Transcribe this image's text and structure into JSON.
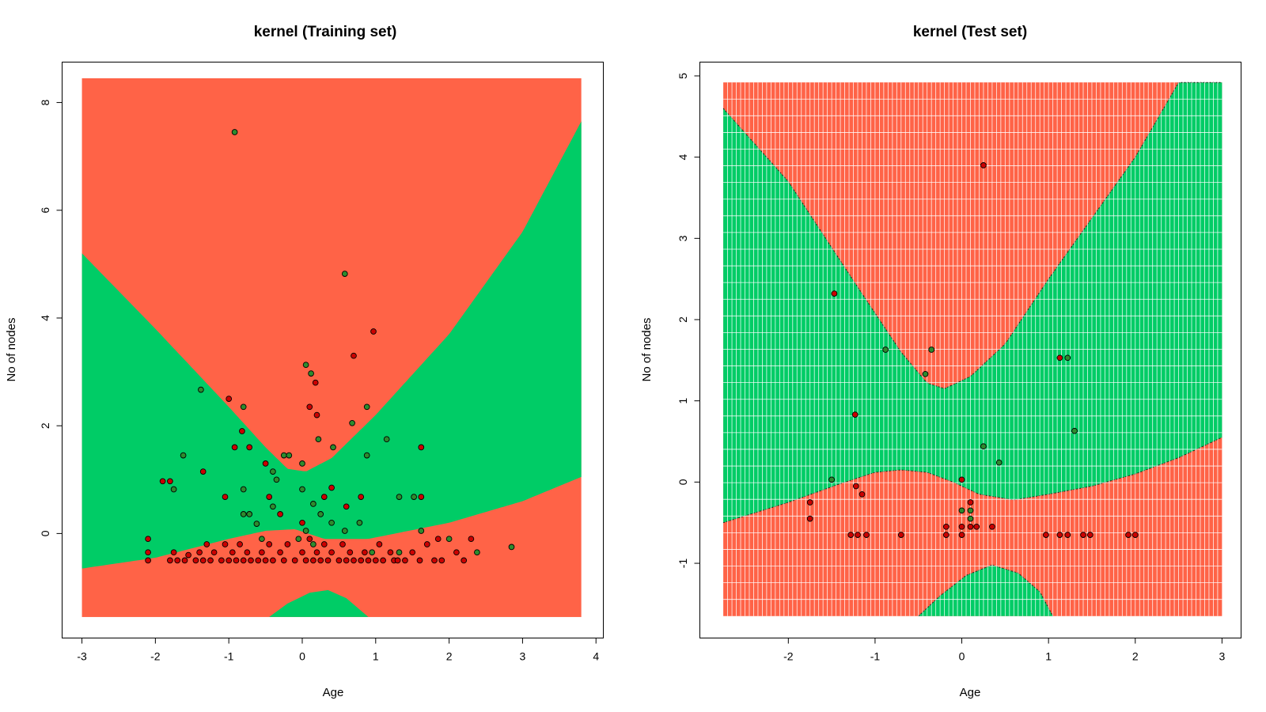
{
  "colors": {
    "region_red": "#FF6347",
    "region_green": "#00CC66",
    "point_red": "#CC0000",
    "point_green": "#2E8B2E",
    "grid_line": "#FFFFFF"
  },
  "chart_data": [
    {
      "type": "scatter",
      "title": "kernel (Training set)",
      "xlabel": "Age",
      "ylabel": "No of nodes",
      "xlim": [
        -3.27,
        4.1
      ],
      "ylim": [
        -1.94,
        8.75
      ],
      "xticks": [
        -3,
        -2,
        -1,
        0,
        1,
        2,
        3,
        4
      ],
      "yticks": [
        0,
        2,
        4,
        6,
        8
      ],
      "grid": false,
      "region_xlim": [
        -3.0,
        3.8
      ],
      "region_ylim": [
        -1.55,
        8.45
      ],
      "decision_regions": [
        {
          "class": "upper",
          "color": "red",
          "upper_boundary": [
            [
              -3.0,
              5.2
            ],
            [
              -2.0,
              3.8
            ],
            [
              -1.0,
              2.35
            ],
            [
              -0.5,
              1.6
            ],
            [
              -0.2,
              1.2
            ],
            [
              0.05,
              1.15
            ],
            [
              0.4,
              1.4
            ],
            [
              1.0,
              2.2
            ],
            [
              2.0,
              3.7
            ],
            [
              3.0,
              5.6
            ],
            [
              3.8,
              7.65
            ]
          ]
        },
        {
          "class": "middle",
          "color": "green",
          "lower_boundary": [
            [
              -3.0,
              -0.65
            ],
            [
              -2.0,
              -0.45
            ],
            [
              -1.0,
              -0.1
            ],
            [
              -0.5,
              0.05
            ],
            [
              -0.1,
              0.08
            ],
            [
              0.3,
              -0.1
            ],
            [
              0.9,
              -0.1
            ],
            [
              2.0,
              0.2
            ],
            [
              3.0,
              0.6
            ],
            [
              3.8,
              1.05
            ]
          ]
        },
        {
          "class": "bottom",
          "color": "green",
          "bump": [
            [
              -0.45,
              -1.55
            ],
            [
              -0.2,
              -1.3
            ],
            [
              0.1,
              -1.1
            ],
            [
              0.35,
              -1.05
            ],
            [
              0.6,
              -1.2
            ],
            [
              0.9,
              -1.55
            ]
          ]
        }
      ],
      "points_red": [
        [
          -2.1,
          -0.5
        ],
        [
          -2.1,
          -0.35
        ],
        [
          -2.1,
          -0.1
        ],
        [
          -1.8,
          -0.5
        ],
        [
          -1.75,
          -0.35
        ],
        [
          -1.7,
          -0.5
        ],
        [
          -1.6,
          -0.5
        ],
        [
          -1.55,
          -0.4
        ],
        [
          -1.45,
          -0.5
        ],
        [
          -1.4,
          -0.35
        ],
        [
          -1.35,
          -0.5
        ],
        [
          -1.3,
          -0.2
        ],
        [
          -1.25,
          -0.5
        ],
        [
          -1.2,
          -0.35
        ],
        [
          -1.1,
          -0.5
        ],
        [
          -1.05,
          -0.2
        ],
        [
          -1.0,
          -0.5
        ],
        [
          -0.95,
          -0.35
        ],
        [
          -0.9,
          -0.5
        ],
        [
          -0.85,
          -0.2
        ],
        [
          -0.8,
          -0.5
        ],
        [
          -0.75,
          -0.35
        ],
        [
          -0.7,
          -0.5
        ],
        [
          -0.6,
          -0.5
        ],
        [
          -0.55,
          -0.35
        ],
        [
          -0.5,
          -0.5
        ],
        [
          -0.45,
          -0.2
        ],
        [
          -0.4,
          -0.5
        ],
        [
          -0.3,
          -0.35
        ],
        [
          -0.25,
          -0.5
        ],
        [
          -0.2,
          -0.2
        ],
        [
          -0.1,
          -0.5
        ],
        [
          0.0,
          -0.35
        ],
        [
          0.05,
          -0.5
        ],
        [
          0.1,
          -0.1
        ],
        [
          0.15,
          -0.5
        ],
        [
          0.2,
          -0.35
        ],
        [
          0.25,
          -0.5
        ],
        [
          0.3,
          -0.2
        ],
        [
          0.35,
          -0.5
        ],
        [
          0.4,
          -0.35
        ],
        [
          0.5,
          -0.5
        ],
        [
          0.55,
          -0.2
        ],
        [
          0.6,
          -0.5
        ],
        [
          0.65,
          -0.35
        ],
        [
          0.7,
          -0.5
        ],
        [
          0.8,
          -0.5
        ],
        [
          0.85,
          -0.35
        ],
        [
          0.9,
          -0.5
        ],
        [
          1.0,
          -0.5
        ],
        [
          1.05,
          -0.2
        ],
        [
          1.1,
          -0.5
        ],
        [
          1.2,
          -0.35
        ],
        [
          1.25,
          -0.5
        ],
        [
          1.3,
          -0.5
        ],
        [
          1.4,
          -0.5
        ],
        [
          1.5,
          -0.35
        ],
        [
          1.6,
          -0.5
        ],
        [
          1.7,
          -0.2
        ],
        [
          1.8,
          -0.5
        ],
        [
          1.85,
          -0.1
        ],
        [
          1.9,
          -0.5
        ],
        [
          2.1,
          -0.35
        ],
        [
          2.2,
          -0.5
        ],
        [
          2.3,
          -0.1
        ],
        [
          -1.9,
          0.97
        ],
        [
          -1.8,
          0.97
        ],
        [
          -1.35,
          1.15
        ],
        [
          -1.05,
          0.68
        ],
        [
          -1.0,
          2.5
        ],
        [
          -0.92,
          1.6
        ],
        [
          -0.82,
          1.9
        ],
        [
          -0.72,
          1.6
        ],
        [
          -0.5,
          1.3
        ],
        [
          -0.45,
          0.68
        ],
        [
          -0.3,
          0.36
        ],
        [
          0.0,
          0.2
        ],
        [
          0.1,
          2.35
        ],
        [
          0.2,
          2.2
        ],
        [
          0.3,
          0.68
        ],
        [
          0.4,
          0.85
        ],
        [
          0.6,
          0.5
        ],
        [
          0.7,
          3.3
        ],
        [
          0.8,
          0.68
        ],
        [
          0.97,
          3.75
        ],
        [
          1.62,
          1.6
        ],
        [
          1.62,
          0.68
        ],
        [
          0.18,
          2.8
        ]
      ],
      "points_green": [
        [
          -0.92,
          7.45
        ],
        [
          0.58,
          4.82
        ],
        [
          -1.38,
          2.67
        ],
        [
          -1.62,
          1.45
        ],
        [
          -1.75,
          0.82
        ],
        [
          -0.8,
          2.35
        ],
        [
          0.05,
          3.13
        ],
        [
          0.12,
          2.97
        ],
        [
          0.22,
          1.75
        ],
        [
          0.42,
          1.6
        ],
        [
          0.68,
          2.05
        ],
        [
          0.88,
          2.35
        ],
        [
          1.15,
          1.75
        ],
        [
          -0.25,
          1.45
        ],
        [
          -0.18,
          1.45
        ],
        [
          -0.4,
          1.15
        ],
        [
          -0.35,
          1.0
        ],
        [
          0.0,
          1.3
        ],
        [
          -0.8,
          0.82
        ],
        [
          0.0,
          0.82
        ],
        [
          0.15,
          0.55
        ],
        [
          -0.8,
          0.36
        ],
        [
          -0.72,
          0.36
        ],
        [
          -0.4,
          0.5
        ],
        [
          -0.62,
          0.18
        ],
        [
          0.05,
          0.05
        ],
        [
          0.25,
          0.36
        ],
        [
          0.4,
          0.2
        ],
        [
          0.58,
          0.05
        ],
        [
          0.78,
          0.2
        ],
        [
          0.88,
          1.45
        ],
        [
          1.32,
          0.68
        ],
        [
          1.52,
          0.68
        ],
        [
          1.62,
          0.05
        ],
        [
          2.0,
          -0.1
        ],
        [
          2.38,
          -0.35
        ],
        [
          2.85,
          -0.25
        ],
        [
          1.32,
          -0.35
        ],
        [
          0.95,
          -0.35
        ],
        [
          0.15,
          -0.2
        ],
        [
          -0.05,
          -0.1
        ],
        [
          -0.55,
          -0.1
        ]
      ]
    },
    {
      "type": "scatter",
      "title": "kernel (Test set)",
      "xlabel": "Age",
      "ylabel": "No of nodes",
      "xlim": [
        -3.02,
        3.22
      ],
      "ylim": [
        -1.92,
        5.17
      ],
      "xticks": [
        -2,
        -1,
        0,
        1,
        2,
        3
      ],
      "yticks": [
        -1,
        0,
        1,
        2,
        3,
        4,
        5
      ],
      "grid": true,
      "region_xlim": [
        -2.75,
        3.0
      ],
      "region_ylim": [
        -1.65,
        4.92
      ],
      "decision_regions": [
        {
          "class": "upper",
          "color": "red",
          "upper_boundary": [
            [
              -2.75,
              4.6
            ],
            [
              -2.0,
              3.7
            ],
            [
              -1.2,
              2.4
            ],
            [
              -0.7,
              1.6
            ],
            [
              -0.4,
              1.22
            ],
            [
              -0.2,
              1.15
            ],
            [
              0.1,
              1.3
            ],
            [
              0.5,
              1.7
            ],
            [
              1.0,
              2.5
            ],
            [
              1.6,
              3.4
            ],
            [
              2.0,
              4.0
            ],
            [
              2.5,
              4.92
            ]
          ]
        },
        {
          "class": "middle",
          "color": "green",
          "lower_boundary": [
            [
              -2.75,
              -0.5
            ],
            [
              -2.0,
              -0.25
            ],
            [
              -1.4,
              -0.02
            ],
            [
              -1.0,
              0.12
            ],
            [
              -0.7,
              0.15
            ],
            [
              -0.4,
              0.12
            ],
            [
              -0.1,
              0.0
            ],
            [
              0.2,
              -0.15
            ],
            [
              0.6,
              -0.22
            ],
            [
              1.0,
              -0.15
            ],
            [
              1.5,
              -0.05
            ],
            [
              2.0,
              0.1
            ],
            [
              2.5,
              0.3
            ],
            [
              3.0,
              0.55
            ]
          ]
        },
        {
          "class": "bottom",
          "color": "green",
          "bump": [
            [
              -0.5,
              -1.65
            ],
            [
              -0.25,
              -1.4
            ],
            [
              0.05,
              -1.15
            ],
            [
              0.35,
              -1.02
            ],
            [
              0.65,
              -1.12
            ],
            [
              0.9,
              -1.35
            ],
            [
              1.05,
              -1.65
            ]
          ]
        }
      ],
      "points_red": [
        [
          0.25,
          3.9
        ],
        [
          -1.47,
          2.32
        ],
        [
          1.13,
          1.53
        ],
        [
          -1.23,
          0.83
        ],
        [
          -1.75,
          -0.25
        ],
        [
          -1.75,
          -0.45
        ],
        [
          -1.28,
          -0.65
        ],
        [
          -1.2,
          -0.65
        ],
        [
          -1.1,
          -0.65
        ],
        [
          -0.7,
          -0.65
        ],
        [
          -1.22,
          -0.05
        ],
        [
          -1.15,
          -0.15
        ],
        [
          -0.18,
          -0.55
        ],
        [
          -0.18,
          -0.65
        ],
        [
          0.0,
          -0.55
        ],
        [
          0.0,
          -0.65
        ],
        [
          0.1,
          -0.25
        ],
        [
          0.1,
          -0.55
        ],
        [
          0.17,
          -0.55
        ],
        [
          0.35,
          -0.55
        ],
        [
          0.0,
          0.03
        ],
        [
          0.97,
          -0.65
        ],
        [
          1.13,
          -0.65
        ],
        [
          1.22,
          -0.65
        ],
        [
          1.4,
          -0.65
        ],
        [
          1.48,
          -0.65
        ],
        [
          1.92,
          -0.65
        ],
        [
          2.0,
          -0.65
        ]
      ],
      "points_green": [
        [
          -0.88,
          1.63
        ],
        [
          -0.35,
          1.63
        ],
        [
          -0.42,
          1.33
        ],
        [
          1.22,
          1.53
        ],
        [
          1.3,
          0.63
        ],
        [
          0.25,
          0.44
        ],
        [
          0.43,
          0.24
        ],
        [
          -1.5,
          0.03
        ],
        [
          0.0,
          -0.35
        ],
        [
          0.1,
          -0.35
        ],
        [
          0.1,
          -0.45
        ]
      ]
    }
  ]
}
